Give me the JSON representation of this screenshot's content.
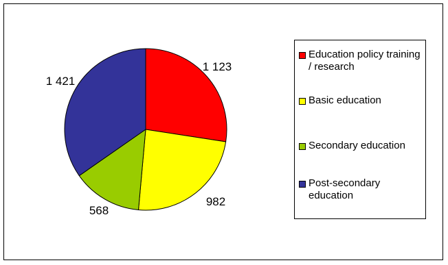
{
  "chart_data": {
    "type": "pie",
    "start_angle_deg": 0,
    "direction": "clockwise",
    "slices": [
      {
        "label": "Education policy training / research",
        "value": 1123,
        "display": "1 123",
        "color": "#FF0000"
      },
      {
        "label": "Basic education",
        "value": 982,
        "display": "982",
        "color": "#FFFF00"
      },
      {
        "label": "Secondary education",
        "value": 568,
        "display": "568",
        "color": "#99CC00"
      },
      {
        "label": "Post-secondary education",
        "value": 1421,
        "display": "1 421",
        "color": "#333399"
      }
    ],
    "legend_position": "right"
  }
}
